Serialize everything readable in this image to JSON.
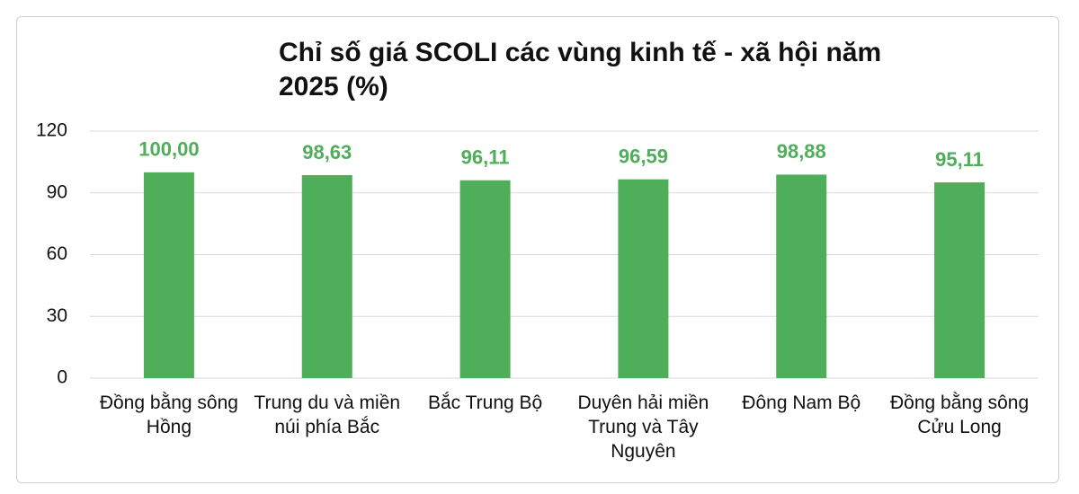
{
  "chart_data": {
    "type": "bar",
    "title": "Chỉ số giá SCOLI các vùng kinh tế - xã hội năm 2025 (%)",
    "categories": [
      "Đồng bằng sông Hồng",
      "Trung du và miền núi phía Bắc",
      "Bắc Trung Bộ",
      "Duyên hải miền Trung và Tây Nguyên",
      "Đông Nam Bộ",
      "Đồng bằng sông Cửu Long"
    ],
    "values": [
      100.0,
      98.63,
      96.11,
      96.59,
      98.88,
      95.11
    ],
    "value_labels": [
      "100,00",
      "98,63",
      "96,11",
      "96,59",
      "98,88",
      "95,11"
    ],
    "color": "#4fae5a",
    "ylim": [
      0,
      120
    ],
    "yticks": [
      0,
      30,
      60,
      90,
      120
    ],
    "grid": true
  }
}
